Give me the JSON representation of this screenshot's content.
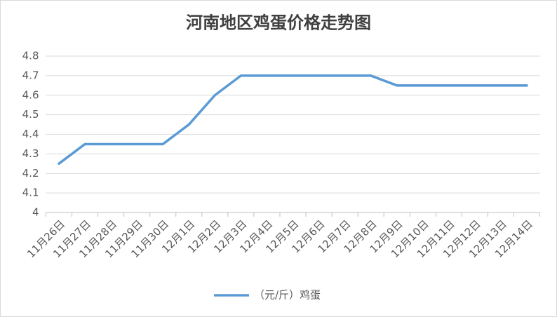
{
  "chart_data": {
    "type": "line",
    "title": "河南地区鸡蛋价格走势图",
    "categories": [
      "11月26日",
      "11月27日",
      "11月28日",
      "11月29日",
      "11月30日",
      "12月1日",
      "12月2日",
      "12月3日",
      "12月4日",
      "12月5日",
      "12月6日",
      "12月7日",
      "12月8日",
      "12月9日",
      "12月10日",
      "12月11日",
      "12月12日",
      "12月13日",
      "12月14日"
    ],
    "series": [
      {
        "name": "（元/斤）鸡蛋",
        "color": "#5b9bd5",
        "values": [
          4.25,
          4.35,
          4.35,
          4.35,
          4.35,
          4.45,
          4.6,
          4.7,
          4.7,
          4.7,
          4.7,
          4.7,
          4.7,
          4.65,
          4.65,
          4.65,
          4.65,
          4.65,
          4.65
        ]
      }
    ],
    "ylim": [
      4,
      4.8
    ],
    "yticks": [
      4,
      4.1,
      4.2,
      4.3,
      4.4,
      4.5,
      4.6,
      4.7,
      4.8
    ],
    "grid": true,
    "legend": "bottom"
  }
}
